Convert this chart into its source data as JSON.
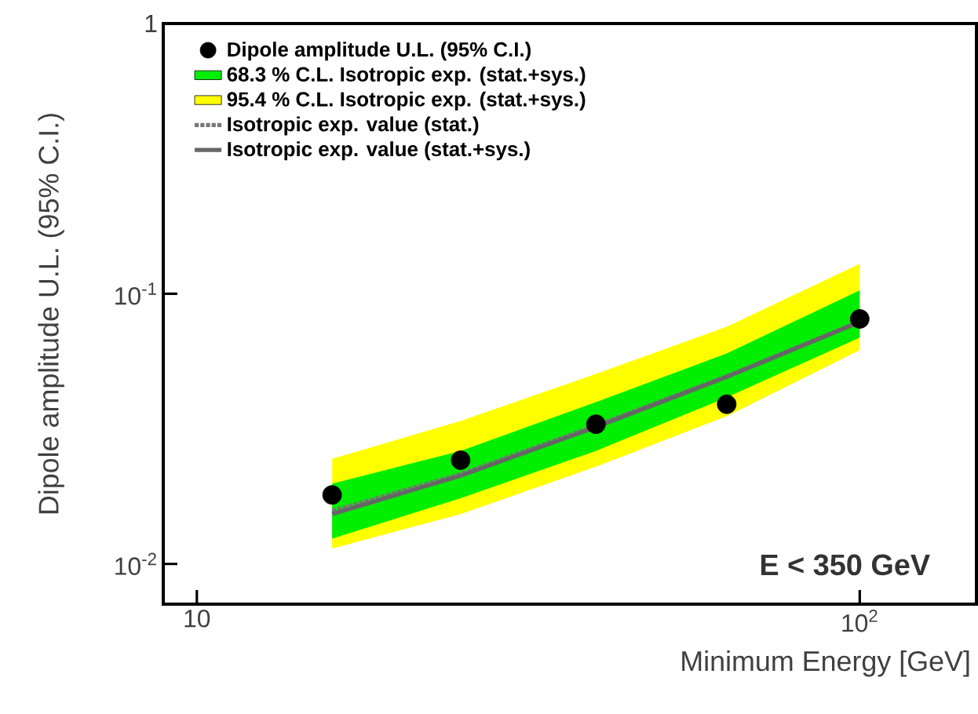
{
  "chart_data": {
    "type": "scatter",
    "xlabel": "Minimum Energy [GeV]",
    "ylabel": "Dipole amplitude U.L. (95% C.I.)",
    "log": "xy",
    "xlim": [
      8.9,
      150
    ],
    "ylim": [
      0.0071,
      1
    ],
    "xticks": [
      10,
      {
        "value": 100,
        "label": "10$^{2}$"
      }
    ],
    "yticks": [
      {
        "value": 0.01,
        "label": "10$^{-2}$"
      },
      {
        "value": 0.1,
        "label": "10$^{-1}$"
      },
      1
    ],
    "legend": "top left",
    "grid": false,
    "annotations": [
      "E < 350 GeV"
    ],
    "series": [
      {
        "name": "Dipole amplitude U.L. (95% C.I.)",
        "marker": "circle",
        "color": "#000000",
        "x": [
          16,
          25,
          40,
          63,
          100
        ],
        "values": [
          0.018,
          0.0242,
          0.0329,
          0.039,
          0.0807
        ]
      },
      {
        "name": "68.3 % C.L. Isotropic exp. (stat.+sys.)",
        "type": "line",
        "color": "#00ee00",
        "x": [
          16,
          25,
          40,
          63,
          100
        ],
        "values": [
          null,
          null,
          null,
          null,
          null
        ],
        "lower": [
          0.0124,
          0.0175,
          0.0262,
          0.0413,
          0.0688
        ],
        "upper": [
          0.0198,
          0.0262,
          0.0397,
          0.0601,
          0.103
        ]
      },
      {
        "name": "95.4 % C.L. Isotropic exp. (stat.+sys.)",
        "type": "line",
        "color": "#ffff00",
        "x": [
          16,
          25,
          40,
          63,
          100
        ],
        "values": [
          null,
          null,
          null,
          null,
          null
        ],
        "lower": [
          0.0114,
          0.0153,
          0.0229,
          0.0352,
          0.0618
        ],
        "upper": [
          0.0245,
          0.0338,
          0.0505,
          0.0755,
          0.129
        ]
      },
      {
        "name": "Isotropic exp. value (stat.)",
        "type": "line",
        "line_style": "dotted",
        "color": "#777777",
        "x": [
          16,
          25,
          40,
          63,
          100
        ],
        "values": [
          0.0157,
          0.0215,
          0.0325,
          0.0495,
          0.079
        ]
      },
      {
        "name": "Isotropic exp. value (stat.+sys.)",
        "type": "line",
        "line_style": "solid",
        "color": "#666666",
        "x": [
          16,
          25,
          40,
          63,
          100
        ],
        "values": [
          0.0153,
          0.0212,
          0.0321,
          0.0492,
          0.0786
        ]
      }
    ]
  }
}
